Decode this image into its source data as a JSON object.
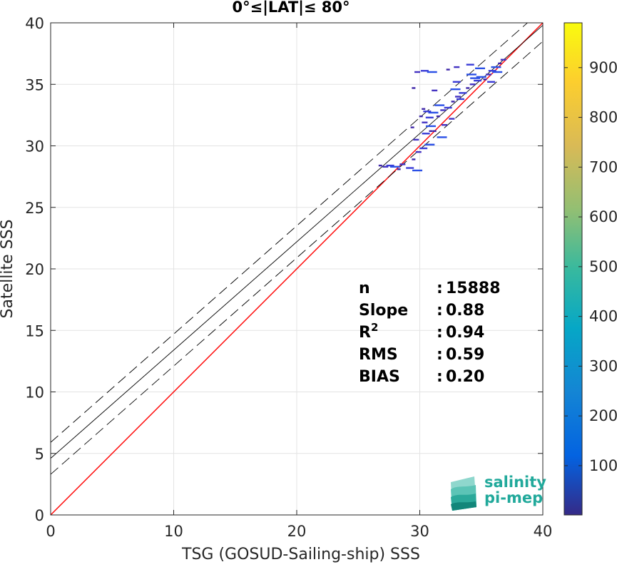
{
  "chart_data": {
    "type": "scatter",
    "subtype": "2d-density-histogram",
    "title": "0°≤|LAT|≤ 80°",
    "xlabel": "TSG (GOSUD-Sailing-ship) SSS",
    "ylabel": "Satellite SSS",
    "xlim": [
      0,
      40
    ],
    "ylim": [
      0,
      40
    ],
    "xticks": [
      "0",
      "10",
      "20",
      "30",
      "40"
    ],
    "yticks": [
      "0",
      "5",
      "10",
      "15",
      "20",
      "25",
      "30",
      "35",
      "40"
    ],
    "grid": true,
    "colorbar": {
      "ticks": [
        "100",
        "200",
        "300",
        "400",
        "500",
        "600",
        "700",
        "800",
        "900"
      ],
      "range": [
        1,
        990
      ],
      "colormap": "parula"
    },
    "lines": [
      {
        "role": "identity",
        "color": "#ff0000",
        "x": [
          0,
          40
        ],
        "y": [
          0,
          40
        ]
      },
      {
        "role": "regression",
        "color": "#000000",
        "x": [
          0,
          40
        ],
        "y": [
          4.6,
          39.8
        ]
      },
      {
        "role": "regression-upper",
        "color": "#000000",
        "dash": true,
        "x": [
          0,
          40
        ],
        "y": [
          5.9,
          41.1
        ]
      },
      {
        "role": "regression-lower",
        "color": "#000000",
        "dash": true,
        "x": [
          0,
          40
        ],
        "y": [
          3.3,
          38.5
        ]
      }
    ],
    "points": [
      [
        26.8,
        28.4
      ],
      [
        27.2,
        28.3
      ],
      [
        27.6,
        28.4
      ],
      [
        28.0,
        28.3
      ],
      [
        28.3,
        28.1
      ],
      [
        28.6,
        28.5
      ],
      [
        29.2,
        28.2
      ],
      [
        29.8,
        28.0
      ],
      [
        29.5,
        28.9
      ],
      [
        29.9,
        29.5
      ],
      [
        30.3,
        29.8
      ],
      [
        30.8,
        30.1
      ],
      [
        29.4,
        31.5
      ],
      [
        29.7,
        30.5
      ],
      [
        30.5,
        31.0
      ],
      [
        30.9,
        31.6
      ],
      [
        31.2,
        31.2
      ],
      [
        30.4,
        31.9
      ],
      [
        30.8,
        32.3
      ],
      [
        31.1,
        32.7
      ],
      [
        31.5,
        32.4
      ],
      [
        31.9,
        32.9
      ],
      [
        32.3,
        33.1
      ],
      [
        31.6,
        33.3
      ],
      [
        32.7,
        33.6
      ],
      [
        33.1,
        34.0
      ],
      [
        33.5,
        34.3
      ],
      [
        32.9,
        34.6
      ],
      [
        33.9,
        34.7
      ],
      [
        34.3,
        35.0
      ],
      [
        34.7,
        35.3
      ],
      [
        35.0,
        35.6
      ],
      [
        35.3,
        35.4
      ],
      [
        35.6,
        35.8
      ],
      [
        35.9,
        36.1
      ],
      [
        36.2,
        36.4
      ],
      [
        36.5,
        36.7
      ],
      [
        36.8,
        37.0
      ],
      [
        35.8,
        35.2
      ],
      [
        36.3,
        36.0
      ],
      [
        30.3,
        33.0
      ],
      [
        31.2,
        34.5
      ],
      [
        33.0,
        35.2
      ],
      [
        34.2,
        35.8
      ],
      [
        29.5,
        34.7
      ],
      [
        29.8,
        36.0
      ],
      [
        30.4,
        36.1
      ],
      [
        31.0,
        36.0
      ],
      [
        32.3,
        36.2
      ],
      [
        33.0,
        36.4
      ],
      [
        34.1,
        36.6
      ],
      [
        34.9,
        36.3
      ],
      [
        30.1,
        32.4
      ],
      [
        32.0,
        31.7
      ],
      [
        30.6,
        32.8
      ],
      [
        31.8,
        30.7
      ],
      [
        30.9,
        31.2
      ],
      [
        32.6,
        32.2
      ],
      [
        33.3,
        33.8
      ],
      [
        34.5,
        35.5
      ]
    ],
    "stats": [
      {
        "label": "n",
        "sep": ":",
        "value": "15888"
      },
      {
        "label": "Slope",
        "sep": ":",
        "value": "0.88"
      },
      {
        "label": "R",
        "sup": "2",
        "sep": ":",
        "value": "0.94"
      },
      {
        "label": "RMS",
        "sep": ":",
        "value": "0.59"
      },
      {
        "label": "BIAS",
        "sep": ":",
        "value": "0.20"
      }
    ],
    "logo": {
      "line1": "salinity",
      "line2": "pi-mep"
    }
  }
}
